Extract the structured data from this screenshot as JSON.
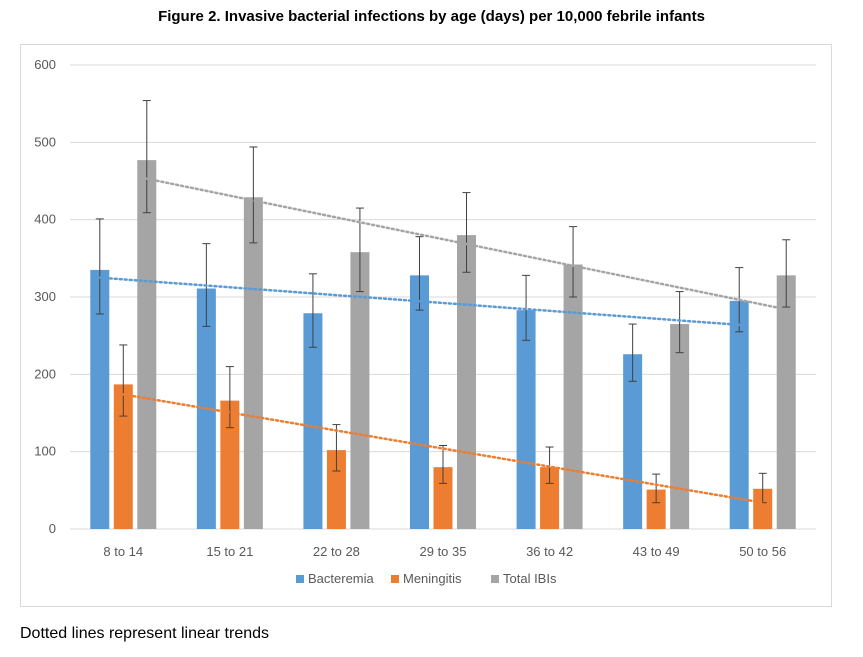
{
  "figure_title": "Figure 2. Invasive bacterial infections by age (days) per 10,000 febrile infants",
  "footnote": "Dotted lines represent linear trends",
  "chart_data": {
    "type": "bar",
    "categories": [
      "8 to 14",
      "15 to 21",
      "22 to 28",
      "29 to 35",
      "36 to 42",
      "43 to 49",
      "50 to 56"
    ],
    "ylim": [
      0,
      600
    ],
    "yticks": [
      0,
      100,
      200,
      300,
      400,
      500,
      600
    ],
    "grid": true,
    "legend_position": "bottom",
    "series": [
      {
        "name": "Bacteremia",
        "color": "#5b9bd5",
        "values": [
          335,
          311,
          279,
          328,
          283,
          226,
          295
        ],
        "error_low": [
          278,
          262,
          235,
          283,
          244,
          191,
          255
        ],
        "error_high": [
          401,
          369,
          330,
          378,
          328,
          265,
          338
        ],
        "trend": [
          325,
          264
        ]
      },
      {
        "name": "Meningitis",
        "color": "#ed7d31",
        "values": [
          187,
          166,
          102,
          80,
          80,
          51,
          52
        ],
        "error_low": [
          146,
          131,
          75,
          59,
          59,
          34,
          34
        ],
        "error_high": [
          238,
          210,
          135,
          108,
          106,
          71,
          72
        ],
        "trend": [
          174,
          34
        ]
      },
      {
        "name": "Total IBIs",
        "color": "#a5a5a5",
        "values": [
          477,
          429,
          358,
          380,
          342,
          265,
          328
        ],
        "error_low": [
          409,
          370,
          307,
          332,
          300,
          228,
          287
        ],
        "error_high": [
          554,
          494,
          415,
          435,
          391,
          307,
          374
        ],
        "trend": [
          453,
          284
        ]
      }
    ]
  }
}
